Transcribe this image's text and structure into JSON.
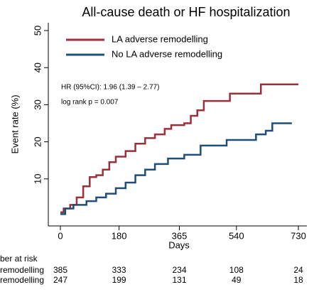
{
  "chart_data": {
    "type": "step",
    "title": "All-cause death or HF hospitalization",
    "ylabel": "Event rate (%)",
    "xlabel": "Days",
    "annotations": [
      "HR (95%CI): 1.96 (1.39 – 2.77)",
      "log rank p = 0.007"
    ],
    "xlim": [
      0,
      730
    ],
    "xticks": [
      0,
      180,
      365,
      540,
      730
    ],
    "ylim": [
      0,
      50
    ],
    "yticks": [
      10,
      20,
      30,
      40,
      50
    ],
    "series": [
      {
        "name": "LA adverse remodelling",
        "color": "#9b2f3a",
        "x": [
          0,
          10,
          30,
          50,
          70,
          90,
          110,
          130,
          150,
          170,
          200,
          230,
          260,
          290,
          320,
          340,
          380,
          400,
          420,
          440,
          520,
          615,
          730
        ],
        "values": [
          1,
          2,
          3,
          5,
          8,
          10.5,
          11,
          12.5,
          14.5,
          16,
          17.5,
          19.5,
          21,
          22,
          23.5,
          24.5,
          25,
          27,
          28.5,
          31,
          33,
          35.5,
          35.5
        ]
      },
      {
        "name": "No LA adverse remodelling",
        "color": "#1f4e79",
        "x": [
          0,
          15,
          40,
          80,
          110,
          140,
          170,
          200,
          230,
          260,
          290,
          330,
          380,
          430,
          510,
          600,
          630,
          650,
          710
        ],
        "values": [
          0.5,
          2,
          3,
          4,
          5,
          6,
          7.5,
          9,
          11,
          12.5,
          14,
          15.5,
          16.5,
          19,
          20.5,
          22,
          23,
          25,
          25
        ]
      }
    ],
    "risk_table": {
      "title": "ber at risk",
      "rows": [
        {
          "label": "remodelling",
          "values": [
            385,
            333,
            234,
            108,
            24
          ]
        },
        {
          "label": "remodelling",
          "values": [
            247,
            199,
            131,
            49,
            18
          ]
        }
      ]
    }
  }
}
